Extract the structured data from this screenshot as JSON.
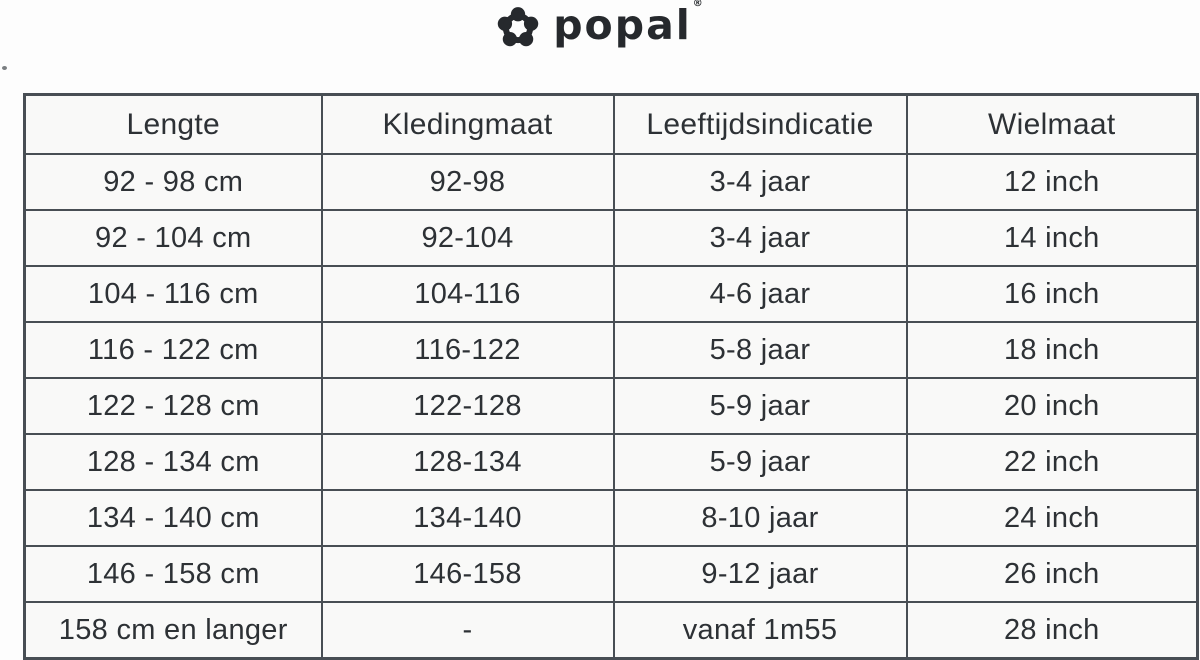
{
  "page": {
    "background": "#fdfdfd"
  },
  "logo": {
    "brand": "popal",
    "trademark": "®",
    "icon": "popal-flower-icon",
    "color": "#26292d"
  },
  "table": {
    "border_color": "#484e54",
    "cell_background": "#f9f9f8",
    "text_color": "#2d3135",
    "headers": [
      "Lengte",
      "Kledingmaat",
      "Leeftijdsindicatie",
      "Wielmaat"
    ],
    "rows": [
      [
        "92 - 98 cm",
        "92-98",
        "3-4 jaar",
        "12 inch"
      ],
      [
        "92 - 104 cm",
        "92-104",
        "3-4 jaar",
        "14 inch"
      ],
      [
        "104 - 116 cm",
        "104-116",
        "4-6 jaar",
        "16 inch"
      ],
      [
        "116 - 122 cm",
        "116-122",
        "5-8 jaar",
        "18 inch"
      ],
      [
        "122 - 128 cm",
        "122-128",
        "5-9 jaar",
        "20 inch"
      ],
      [
        "128 - 134 cm",
        "128-134",
        "5-9 jaar",
        "22 inch"
      ],
      [
        "134 - 140 cm",
        "134-140",
        "8-10 jaar",
        "24 inch"
      ],
      [
        "146 - 158 cm",
        "146-158",
        "9-12 jaar",
        "26 inch"
      ],
      [
        "158 cm en langer",
        "-",
        "vanaf 1m55",
        "28 inch"
      ]
    ]
  },
  "chart_data": {
    "type": "table",
    "title": "Popal kinderfiets maattabel",
    "columns": [
      "Lengte",
      "Kledingmaat",
      "Leeftijdsindicatie",
      "Wielmaat"
    ],
    "rows": [
      [
        "92 - 98 cm",
        "92-98",
        "3-4 jaar",
        "12 inch"
      ],
      [
        "92 - 104 cm",
        "92-104",
        "3-4 jaar",
        "14 inch"
      ],
      [
        "104 - 116 cm",
        "104-116",
        "4-6 jaar",
        "16 inch"
      ],
      [
        "116 - 122 cm",
        "116-122",
        "5-8 jaar",
        "18 inch"
      ],
      [
        "122 - 128 cm",
        "122-128",
        "5-9 jaar",
        "20 inch"
      ],
      [
        "128 - 134 cm",
        "128-134",
        "5-9 jaar",
        "22 inch"
      ],
      [
        "134 - 140 cm",
        "134-140",
        "8-10 jaar",
        "24 inch"
      ],
      [
        "146 - 158 cm",
        "146-158",
        "9-12 jaar",
        "26 inch"
      ],
      [
        "158 cm en langer",
        "-",
        "vanaf 1m55",
        "28 inch"
      ]
    ]
  }
}
